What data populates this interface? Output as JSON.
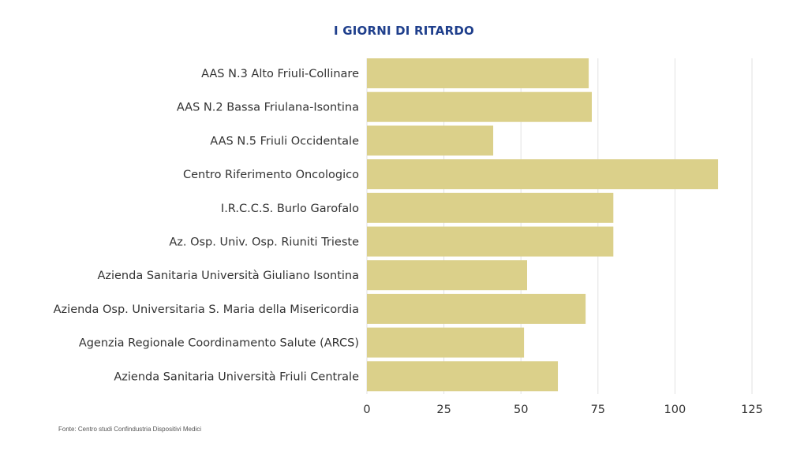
{
  "chart_data": {
    "type": "bar",
    "orientation": "horizontal",
    "title": "I GIORNI DI RITARDO",
    "categories": [
      "AAS N.3 Alto Friuli-Collinare",
      "AAS N.2 Bassa Friulana-Isontina",
      "AAS N.5 Friuli Occidentale",
      "Centro Riferimento Oncologico",
      "I.R.C.C.S. Burlo Garofalo",
      "Az. Osp. Univ. Osp. Riuniti Trieste",
      "Azienda Sanitaria Università Giuliano Isontina",
      "Azienda Osp. Universitaria S. Maria della Misericordia",
      "Agenzia Regionale Coordinamento Salute (ARCS)",
      "Azienda Sanitaria Università Friuli Centrale"
    ],
    "values": [
      72,
      73,
      41,
      114,
      80,
      80,
      52,
      71,
      51,
      62
    ],
    "xticks": [
      0,
      25,
      50,
      75,
      100,
      125
    ],
    "xlim": [
      0,
      125
    ],
    "grid": true,
    "bar_color": "#dbd08a"
  },
  "source": "Fonte: Centro studi Confindustria Dispositivi Medici"
}
